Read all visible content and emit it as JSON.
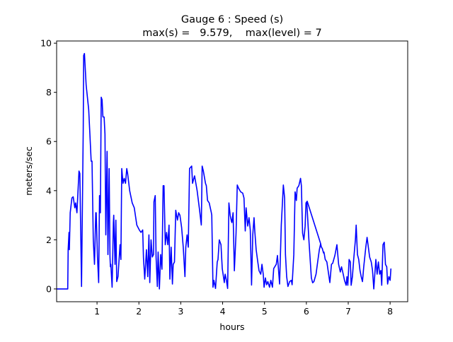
{
  "chart_data": {
    "type": "line",
    "title": "Gauge 6 : Speed (s)",
    "subtitle": "max(s) =   9.579,    max(level) = 7",
    "xlabel": "hours",
    "ylabel": "meters/sec",
    "xlim": [
      0.035,
      8.42
    ],
    "ylim": [
      -0.52,
      10.09
    ],
    "xticks": [
      1,
      2,
      3,
      4,
      5,
      6,
      7,
      8
    ],
    "xtick_labels": [
      "1",
      "2",
      "3",
      "4",
      "5",
      "6",
      "7",
      "8"
    ],
    "yticks": [
      0,
      2,
      4,
      6,
      8,
      10
    ],
    "ytick_labels": [
      "0",
      "2",
      "4",
      "6",
      "8",
      "10"
    ],
    "grid": false,
    "color": "#0000ff",
    "series": [
      {
        "name": "speed",
        "segments": [
          [
            [
              0.035,
              0
            ],
            [
              0.3,
              0
            ],
            [
              0.31,
              1.6
            ],
            [
              0.33,
              2.3
            ],
            [
              0.34,
              1.6
            ],
            [
              0.36,
              3.1
            ],
            [
              0.4,
              3.7
            ],
            [
              0.43,
              3.75
            ],
            [
              0.47,
              3.3
            ],
            [
              0.49,
              3.5
            ],
            [
              0.52,
              3.1
            ],
            [
              0.57,
              4.8
            ],
            [
              0.59,
              4.7
            ],
            [
              0.63,
              0.1
            ],
            [
              0.67,
              6.5
            ],
            [
              0.68,
              9.5
            ],
            [
              0.7,
              9.58
            ],
            [
              0.74,
              8.3
            ],
            [
              0.8,
              7.3
            ],
            [
              0.83,
              6.3
            ],
            [
              0.86,
              5.2
            ],
            [
              0.88,
              5.2
            ],
            [
              0.91,
              2.0
            ],
            [
              0.94,
              1.0
            ],
            [
              0.97,
              3.1
            ],
            [
              0.98,
              3.1
            ],
            [
              1.01,
              1.3
            ],
            [
              1.04,
              0.26
            ],
            [
              1.06,
              3.8
            ],
            [
              1.08,
              3.1
            ],
            [
              1.1,
              7.8
            ],
            [
              1.12,
              7.7
            ],
            [
              1.14,
              7.0
            ],
            [
              1.17,
              7.0
            ],
            [
              1.19,
              6.3
            ],
            [
              1.21,
              2.2
            ],
            [
              1.24,
              5.6
            ],
            [
              1.26,
              1.4
            ],
            [
              1.29,
              4.9
            ],
            [
              1.31,
              1.3
            ],
            [
              1.32,
              0.9
            ],
            [
              1.33,
              1.0
            ],
            [
              1.36,
              0.07
            ],
            [
              1.39,
              2.7
            ],
            [
              1.4,
              3.0
            ],
            [
              1.43,
              1.0
            ],
            [
              1.45,
              2.8
            ],
            [
              1.47,
              0.3
            ],
            [
              1.5,
              0.5
            ],
            [
              1.55,
              1.8
            ],
            [
              1.57,
              1.2
            ],
            [
              1.59,
              4.9
            ],
            [
              1.62,
              4.3
            ],
            [
              1.65,
              4.5
            ],
            [
              1.68,
              4.3
            ],
            [
              1.71,
              4.9
            ],
            [
              1.73,
              4.7
            ],
            [
              1.78,
              4.0
            ],
            [
              1.84,
              3.5
            ],
            [
              1.89,
              3.3
            ],
            [
              1.95,
              2.6
            ],
            [
              2.01,
              2.4
            ],
            [
              2.05,
              2.3
            ],
            [
              2.09,
              2.4
            ],
            [
              2.11,
              1.26
            ],
            [
              2.14,
              0.4
            ],
            [
              2.18,
              1.6
            ],
            [
              2.21,
              0.5
            ],
            [
              2.24,
              2.2
            ],
            [
              2.26,
              0.26
            ],
            [
              2.29,
              2.0
            ],
            [
              2.32,
              1.3
            ],
            [
              2.35,
              1.4
            ],
            [
              2.36,
              3.55
            ],
            [
              2.39,
              3.8
            ],
            [
              2.41,
              1.3
            ],
            [
              2.44,
              0.1
            ],
            [
              2.46,
              1.5
            ],
            [
              2.49,
              0.0
            ],
            [
              2.52,
              1.4
            ],
            [
              2.55,
              0.8
            ],
            [
              2.58,
              4.2
            ],
            [
              2.6,
              4.2
            ],
            [
              2.63,
              1.8
            ],
            [
              2.66,
              2.3
            ],
            [
              2.69,
              1.8
            ],
            [
              2.72,
              2.6
            ],
            [
              2.74,
              0.4
            ],
            [
              2.77,
              1.7
            ],
            [
              2.8,
              0.2
            ],
            [
              2.82,
              1.0
            ],
            [
              2.85,
              1.1
            ],
            [
              2.88,
              3.2
            ],
            [
              2.92,
              2.8
            ],
            [
              2.95,
              3.1
            ],
            [
              2.98,
              3.0
            ],
            [
              3.02,
              2.5
            ],
            [
              3.06,
              1.7
            ],
            [
              3.1,
              0.5
            ],
            [
              3.12,
              1.7
            ],
            [
              3.15,
              2.2
            ],
            [
              3.18,
              1.7
            ],
            [
              3.21,
              4.9
            ],
            [
              3.26,
              5.0
            ],
            [
              3.28,
              4.3
            ],
            [
              3.33,
              4.6
            ],
            [
              3.39,
              4.0
            ],
            [
              3.45,
              3.2
            ],
            [
              3.49,
              2.6
            ],
            [
              3.51,
              5.0
            ],
            [
              3.54,
              4.8
            ],
            [
              3.59,
              4.3
            ],
            [
              3.61,
              4.2
            ],
            [
              3.64,
              3.6
            ],
            [
              3.68,
              3.5
            ],
            [
              3.73,
              3.1
            ],
            [
              3.74,
              3.0
            ],
            [
              3.77,
              0.07
            ],
            [
              3.79,
              0.35
            ],
            [
              3.83,
              0.02
            ],
            [
              3.87,
              1.1
            ],
            [
              3.89,
              1.2
            ],
            [
              3.92,
              2.0
            ],
            [
              3.96,
              1.8
            ],
            [
              3.99,
              0.83
            ],
            [
              4.04,
              0.26
            ],
            [
              4.06,
              0.6
            ],
            [
              4.09,
              0.35
            ],
            [
              4.12,
              0.02
            ],
            [
              4.15,
              3.5
            ],
            [
              4.18,
              3.0
            ],
            [
              4.21,
              2.75
            ],
            [
              4.22,
              2.7
            ],
            [
              4.25,
              3.1
            ],
            [
              4.28,
              0.74
            ],
            [
              4.32,
              2.27
            ],
            [
              4.35,
              4.23
            ],
            [
              4.38,
              4.1
            ],
            [
              4.43,
              3.95
            ],
            [
              4.48,
              3.9
            ],
            [
              4.51,
              3.7
            ],
            [
              4.54,
              2.36
            ],
            [
              4.56,
              3.3
            ],
            [
              4.6,
              2.56
            ],
            [
              4.63,
              2.9
            ],
            [
              4.66,
              2.4
            ],
            [
              4.69,
              0.16
            ],
            [
              4.72,
              2.2
            ],
            [
              4.75,
              2.9
            ],
            [
              4.77,
              2.3
            ],
            [
              4.8,
              1.6
            ],
            [
              4.84,
              1.1
            ],
            [
              4.87,
              0.74
            ],
            [
              4.91,
              0.6
            ],
            [
              4.94,
              1.0
            ],
            [
              4.97,
              0.6
            ],
            [
              4.99,
              0.07
            ],
            [
              5.02,
              0.45
            ],
            [
              5.05,
              0.17
            ],
            [
              5.08,
              0.3
            ],
            [
              5.12,
              0.07
            ],
            [
              5.15,
              0.35
            ],
            [
              5.19,
              0.07
            ],
            [
              5.22,
              0.83
            ],
            [
              5.28,
              1.0
            ],
            [
              5.31,
              1.36
            ],
            [
              5.36,
              0.2
            ],
            [
              5.4,
              2.6
            ],
            [
              5.45,
              4.23
            ],
            [
              5.48,
              3.7
            ],
            [
              5.5,
              1.4
            ],
            [
              5.53,
              0.5
            ],
            [
              5.56,
              0.1
            ],
            [
              5.6,
              0.3
            ],
            [
              5.64,
              0.35
            ],
            [
              5.66,
              0.17
            ],
            [
              5.7,
              1.4
            ],
            [
              5.73,
              3.95
            ],
            [
              5.76,
              3.6
            ],
            [
              5.78,
              4.1
            ],
            [
              5.82,
              4.2
            ],
            [
              5.86,
              4.5
            ],
            [
              5.88,
              4.2
            ],
            [
              5.91,
              2.27
            ],
            [
              5.94,
              2.0
            ],
            [
              5.97,
              2.55
            ],
            [
              5.99,
              3.5
            ],
            [
              6.02,
              3.57
            ],
            [
              6.34,
              1.84
            ],
            [
              6.36,
              1.7
            ],
            [
              6.38,
              1.65
            ],
            [
              6.41,
              1.46
            ],
            [
              6.42,
              1.5
            ],
            [
              6.45,
              1.2
            ],
            [
              6.49,
              1.1
            ],
            [
              6.56,
              0.26
            ],
            [
              6.6,
              1.0
            ],
            [
              6.63,
              1.05
            ],
            [
              6.68,
              1.36
            ],
            [
              6.73,
              1.8
            ],
            [
              6.77,
              1.0
            ],
            [
              6.81,
              0.69
            ],
            [
              6.84,
              0.9
            ],
            [
              6.88,
              0.6
            ],
            [
              6.91,
              0.35
            ],
            [
              6.95,
              0.15
            ],
            [
              6.97,
              0.5
            ],
            [
              6.99,
              0.15
            ],
            [
              7.02,
              1.2
            ],
            [
              7.05,
              1.1
            ],
            [
              7.07,
              0.15
            ],
            [
              7.1,
              0.5
            ],
            [
              7.13,
              1.2
            ],
            [
              7.17,
              2.0
            ],
            [
              7.19,
              2.6
            ],
            [
              7.22,
              1.4
            ],
            [
              7.25,
              1.2
            ],
            [
              7.28,
              0.75
            ],
            [
              7.31,
              0.5
            ],
            [
              7.34,
              0.3
            ],
            [
              7.37,
              0.9
            ],
            [
              7.42,
              1.7
            ],
            [
              7.45,
              2.1
            ],
            [
              7.48,
              1.7
            ],
            [
              7.51,
              1.3
            ],
            [
              7.55,
              1.1
            ],
            [
              7.58,
              0.75
            ],
            [
              7.61,
              0.0
            ],
            [
              7.63,
              0.5
            ],
            [
              7.66,
              1.2
            ],
            [
              7.69,
              0.6
            ],
            [
              7.72,
              1.1
            ],
            [
              7.75,
              0.6
            ],
            [
              7.78,
              0.75
            ],
            [
              7.8,
              0.15
            ],
            [
              7.83,
              1.8
            ],
            [
              7.86,
              1.9
            ],
            [
              7.89,
              1.0
            ],
            [
              7.92,
              0.9
            ],
            [
              7.94,
              0.2
            ],
            [
              7.97,
              0.5
            ],
            [
              8.0,
              0.35
            ],
            [
              8.02,
              0.83
            ]
          ],
          [
            [
              6.01,
              3.56
            ],
            [
              6.06,
              2.0
            ],
            [
              6.12,
              0.45
            ],
            [
              6.15,
              0.25
            ],
            [
              6.18,
              0.3
            ],
            [
              6.23,
              0.6
            ],
            [
              6.27,
              1.1
            ],
            [
              6.31,
              1.6
            ],
            [
              6.34,
              1.84
            ]
          ]
        ]
      }
    ]
  }
}
